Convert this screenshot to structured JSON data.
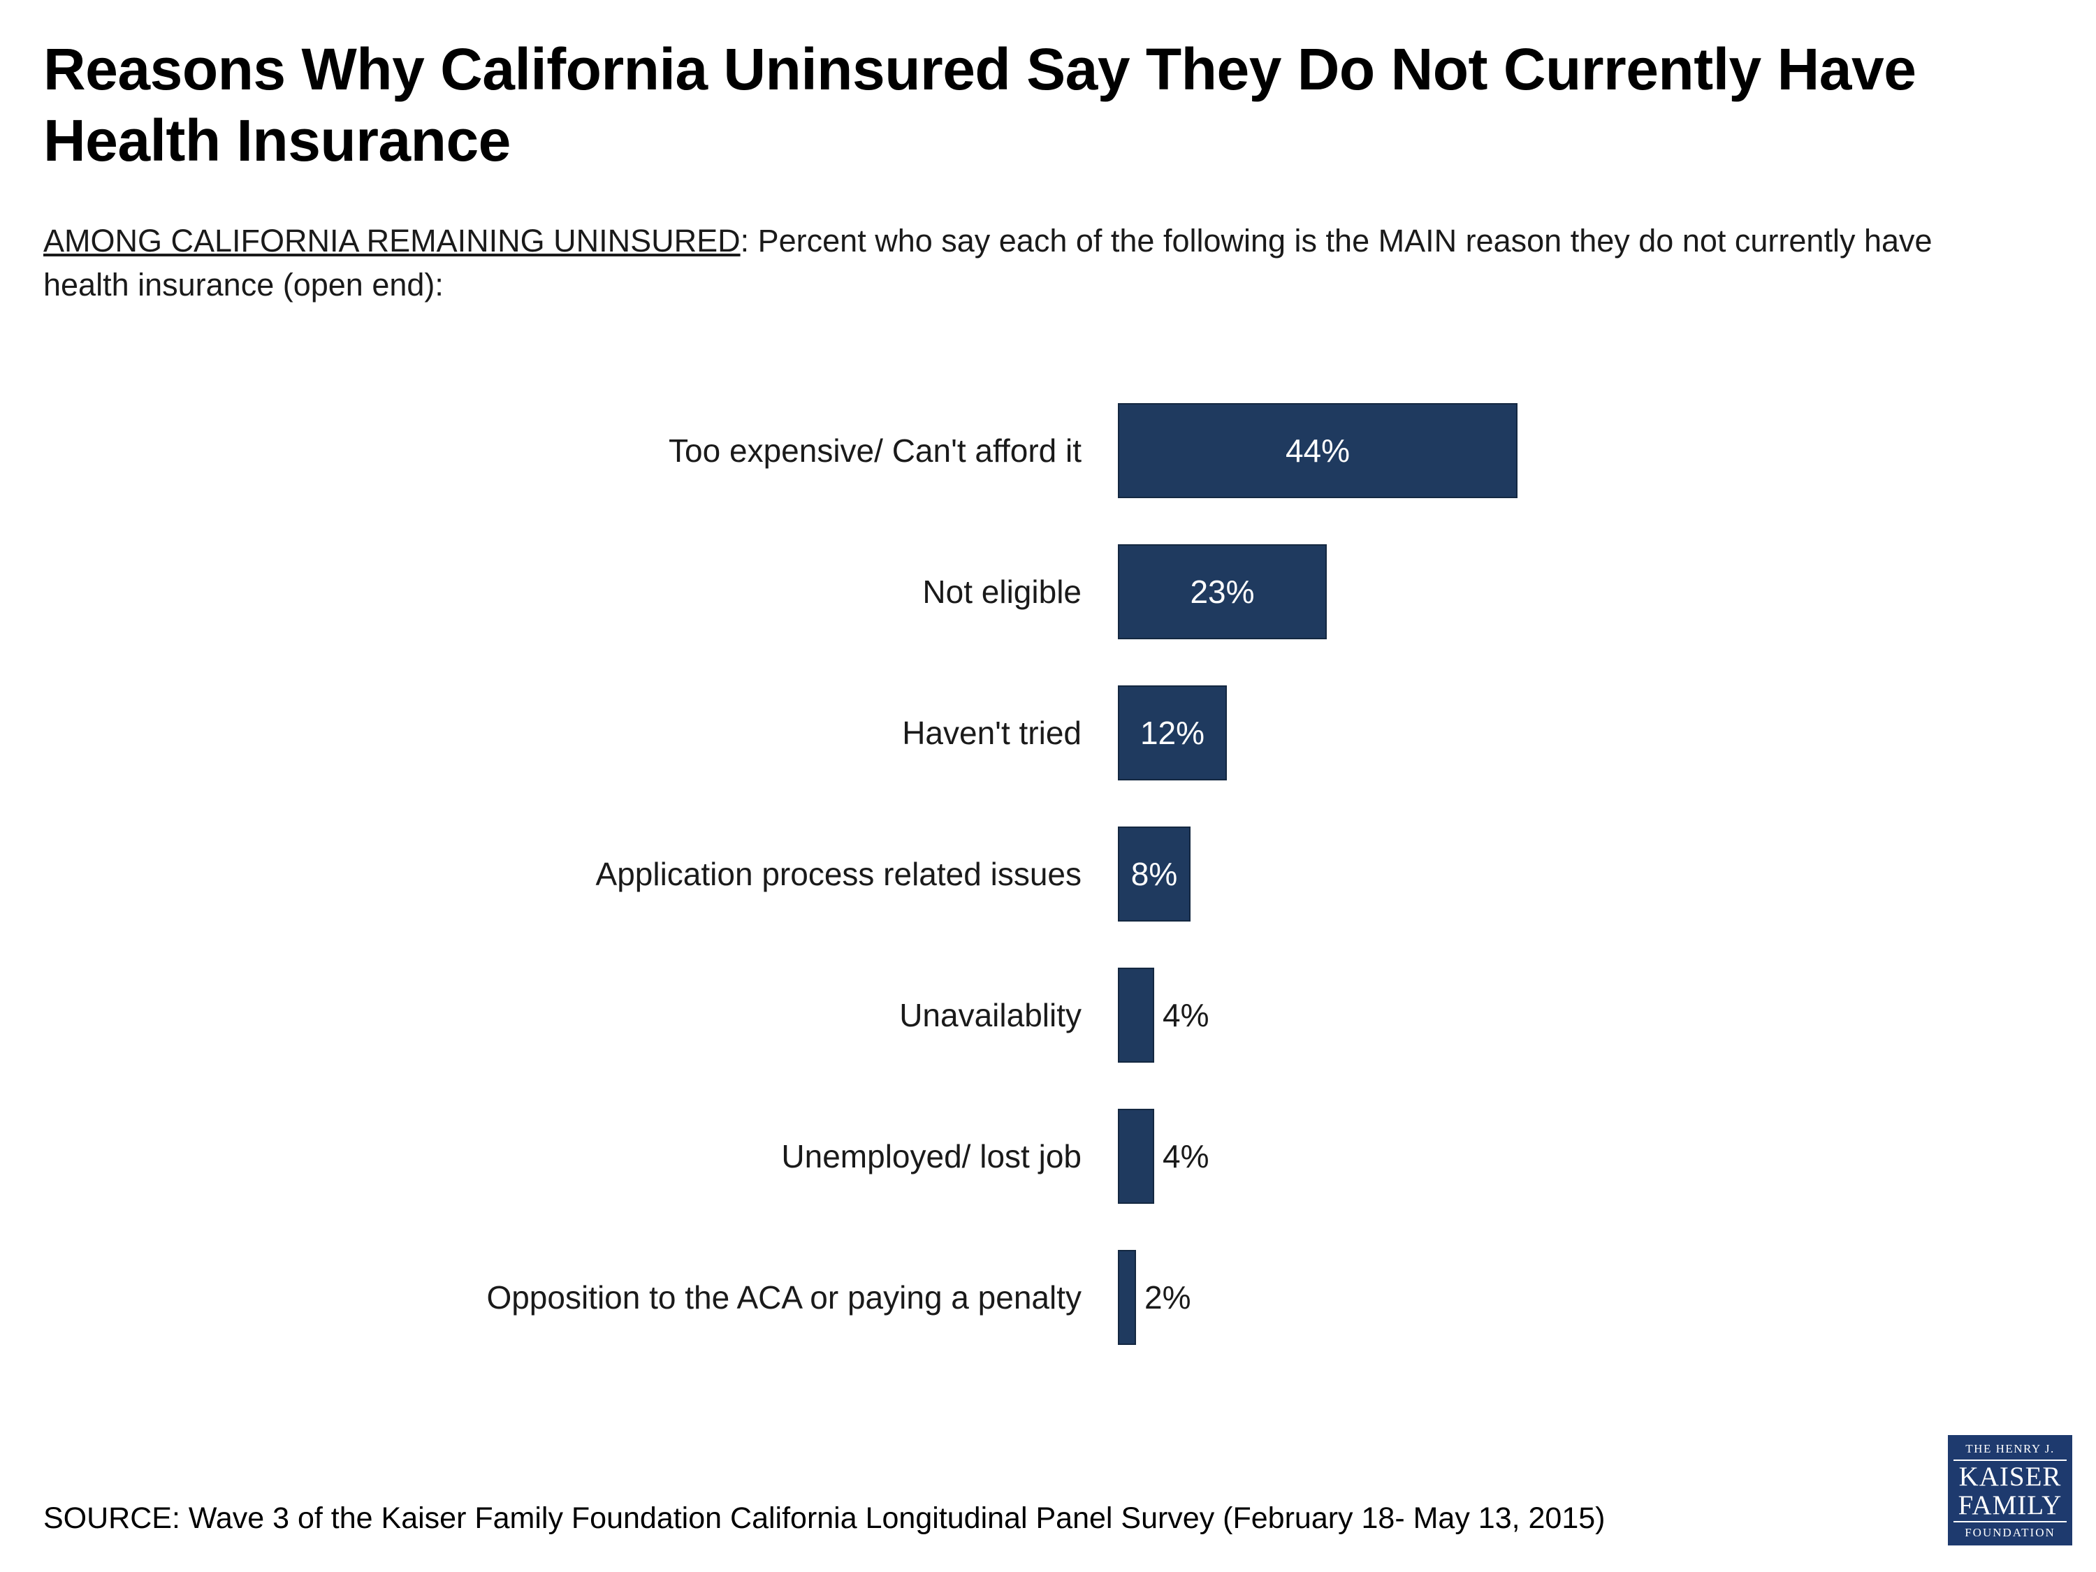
{
  "title": "Reasons Why California Uninsured Say They Do Not Currently Have Health Insurance",
  "subtitle": {
    "underlined": "AMONG CALIFORNIA REMAINING UNINSURED",
    "rest": ": Percent who say each of the following is the MAIN reason they do not currently have health insurance (open end):"
  },
  "chart_data": {
    "type": "bar",
    "orientation": "horizontal",
    "title": "Reasons Why California Uninsured Say They Do Not Currently Have Health Insurance",
    "categories": [
      "Too expensive/ Can't afford it",
      "Not eligible",
      "Haven't tried",
      "Application process related issues",
      "Unavailablity",
      "Unemployed/ lost  job",
      "Opposition to the ACA or paying a penalty"
    ],
    "values": [
      44,
      23,
      12,
      8,
      4,
      4,
      2
    ],
    "value_labels": [
      "44%",
      "23%",
      "12%",
      "8%",
      "4%",
      "4%",
      "2%"
    ],
    "xlabel": "",
    "ylabel": "",
    "xlim": [
      0,
      50
    ],
    "grid": false,
    "legend": false,
    "bar_color": "#1f3a5f",
    "inside_label_threshold": 8,
    "inside_label_color": "#ffffff",
    "outside_label_color": "#1a1a1a"
  },
  "source": "SOURCE: Wave 3 of the Kaiser Family Foundation California Longitudinal Panel Survey (February 18- May 13, 2015)",
  "logo": {
    "line1": "THE HENRY J.",
    "line2": "KAISER",
    "line3": "FAMILY",
    "line4": "FOUNDATION",
    "bg_color": "#1e3a6e"
  }
}
